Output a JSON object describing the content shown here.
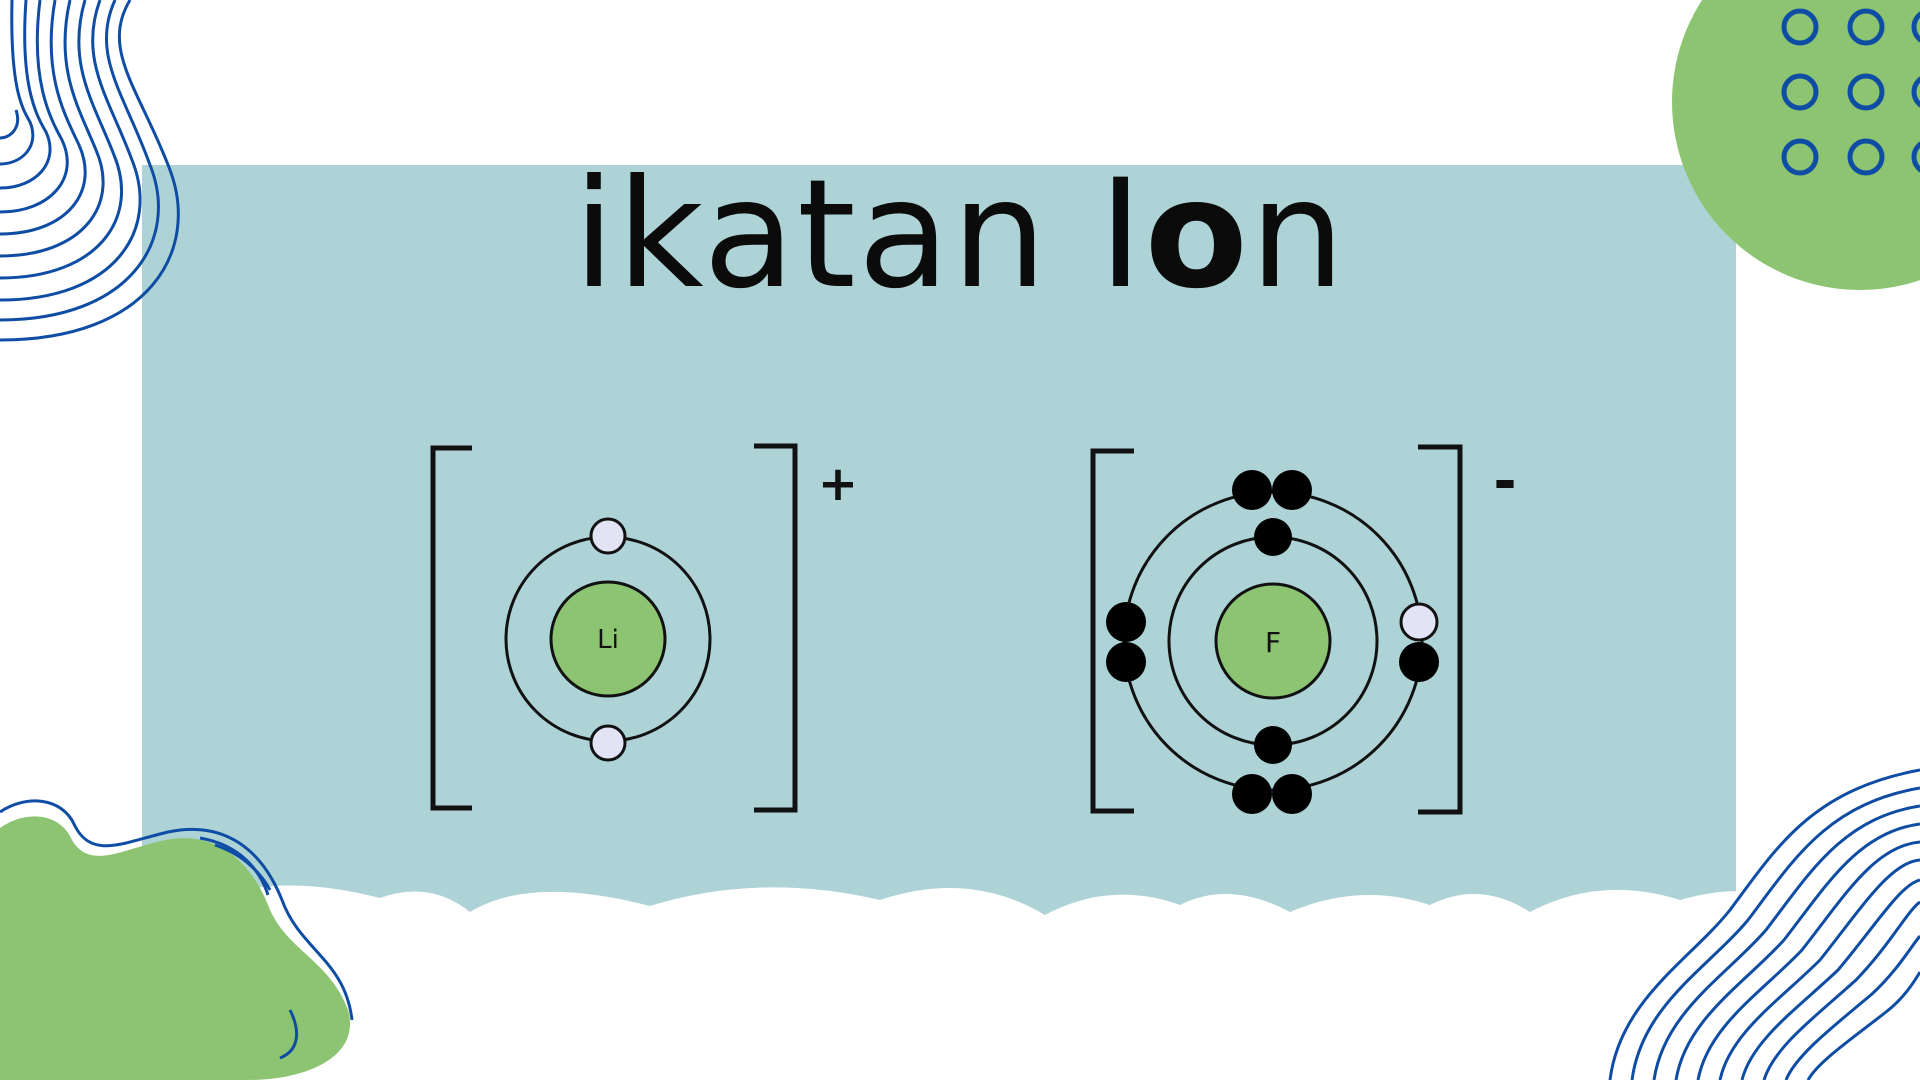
{
  "slide": {
    "title_prefix": "ikatan I",
    "title_o": "o",
    "title_suffix": "n"
  },
  "diagram": {
    "lithium": {
      "symbol": "Li",
      "charge": "+"
    },
    "fluorine": {
      "symbol": "F",
      "charge": "-"
    }
  },
  "colors": {
    "panel": "#AED3D6",
    "nucleus": "#8CC472",
    "blob_green": "#8CC472",
    "wave_blue": "#0F4DA5",
    "electron_transferred": "#E2E4F5",
    "electron": "#000000"
  }
}
